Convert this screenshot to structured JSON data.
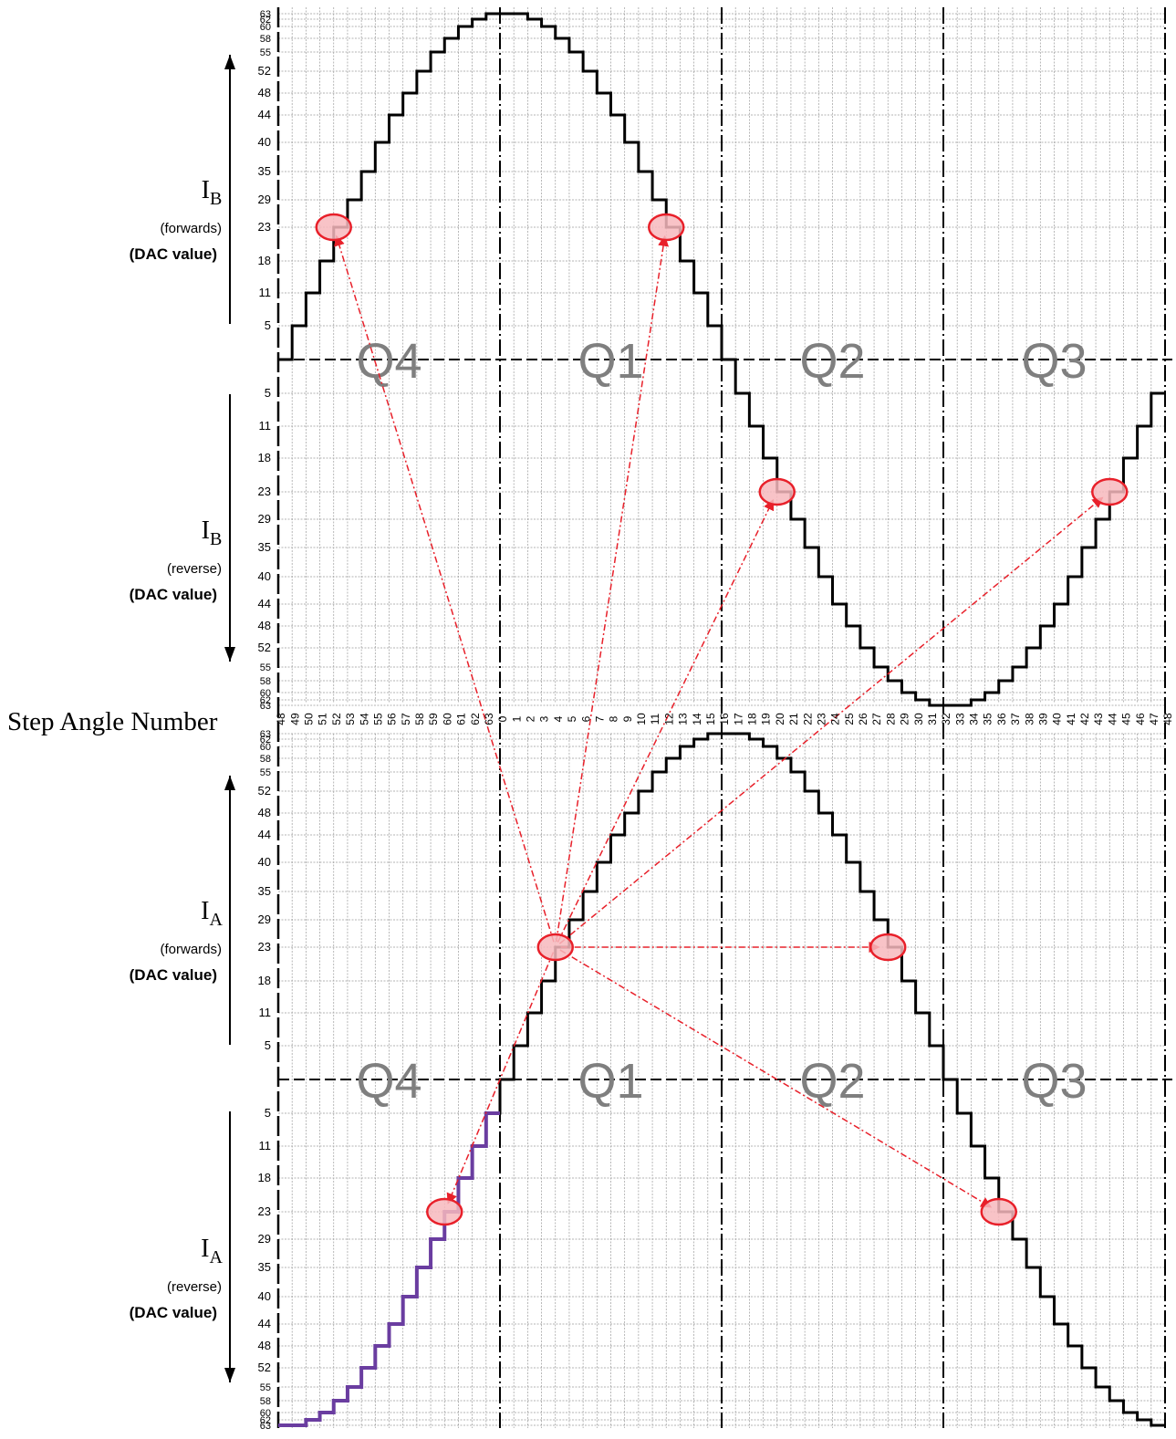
{
  "colors": {
    "background": "#ffffff",
    "grid_minor": "#9a9a9a",
    "grid_major": "#000000",
    "waveform": "#000000",
    "highlight_trace": "#6a3da0",
    "quadrant_label": "#7f7f7f",
    "marker_stroke": "#e8202a",
    "marker_fill": "#f7b9bd",
    "arrow": "#e8202a"
  },
  "dac_levels": [
    "5",
    "11",
    "18",
    "23",
    "29",
    "35",
    "40",
    "44",
    "48",
    "52",
    "55",
    "58",
    "60",
    "62",
    "63"
  ],
  "step_axis_label": "Step Angle Number",
  "step_labels": [
    "48",
    "49",
    "50",
    "51",
    "52",
    "53",
    "54",
    "55",
    "56",
    "57",
    "58",
    "59",
    "60",
    "61",
    "62",
    "63",
    "0",
    "1",
    "2",
    "3",
    "4",
    "5",
    "6",
    "7",
    "8",
    "9",
    "10",
    "11",
    "12",
    "13",
    "14",
    "15",
    "16",
    "17",
    "18",
    "19",
    "20",
    "21",
    "22",
    "23",
    "24",
    "25",
    "26",
    "27",
    "28",
    "29",
    "30",
    "31",
    "32",
    "33",
    "34",
    "35",
    "36",
    "37",
    "38",
    "39",
    "40",
    "41",
    "42",
    "43",
    "44",
    "45",
    "46",
    "47",
    "48"
  ],
  "quadrants": [
    "Q4",
    "Q1",
    "Q2",
    "Q3"
  ],
  "panels": [
    {
      "current": "I",
      "subscript": "B",
      "direction": "(forwards)",
      "unit": "(DAC value)"
    },
    {
      "current": "I",
      "subscript": "B",
      "direction": "(reverse)",
      "unit": "(DAC value)"
    },
    {
      "current": "I",
      "subscript": "A",
      "direction": "(forwards)",
      "unit": "(DAC value)"
    },
    {
      "current": "I",
      "subscript": "A",
      "direction": "(reverse)",
      "unit": "(DAC value)"
    }
  ],
  "chart_data": {
    "type": "line",
    "x_unit": "step angle number (column index 0-64 ↔ labels 48..63,0..47,48)",
    "y_unit": "signed DAC level index (-15..15)",
    "series": [
      {
        "name": "IB",
        "values": [
          0,
          1,
          2,
          3,
          4,
          5,
          6,
          7,
          8,
          9,
          10,
          11,
          12,
          13,
          14,
          15,
          15,
          15,
          14,
          13,
          12,
          11,
          10,
          9,
          8,
          7,
          6,
          5,
          4,
          3,
          2,
          1,
          0,
          -1,
          -2,
          -3,
          -4,
          -5,
          -6,
          -7,
          -8,
          -9,
          -10,
          -11,
          -12,
          -13,
          -14,
          -15,
          -15,
          -15,
          -14,
          -13,
          -12,
          -11,
          -10,
          -9,
          -8,
          -7,
          -6,
          -5,
          -4,
          -3,
          -2,
          -1,
          0
        ]
      },
      {
        "name": "IA",
        "values": [
          -15,
          -15,
          -14,
          -13,
          -12,
          -11,
          -10,
          -9,
          -8,
          -7,
          -6,
          -5,
          -4,
          -3,
          -2,
          -1,
          0,
          1,
          2,
          3,
          4,
          5,
          6,
          7,
          8,
          9,
          10,
          11,
          12,
          13,
          14,
          15,
          15,
          15,
          14,
          13,
          12,
          11,
          10,
          9,
          8,
          7,
          6,
          5,
          4,
          3,
          2,
          1,
          0,
          -1,
          -2,
          -3,
          -4,
          -5,
          -6,
          -7,
          -8,
          -9,
          -10,
          -11,
          -12,
          -13,
          -14,
          -15,
          -15
        ]
      }
    ],
    "highlight": {
      "series": "IA",
      "from_step": 0,
      "to_step": 16
    },
    "markers": [
      {
        "series": "IB",
        "step": 52,
        "level": 4
      },
      {
        "series": "IB",
        "step": 12,
        "level": 4
      },
      {
        "series": "IB",
        "step": 20,
        "level": -4
      },
      {
        "series": "IB",
        "step": 44,
        "level": -4
      },
      {
        "series": "IA",
        "step": 4,
        "level": 4
      },
      {
        "series": "IA",
        "step": 28,
        "level": 4
      },
      {
        "series": "IA",
        "step": 60,
        "level": -4
      },
      {
        "series": "IA",
        "step": 36,
        "level": -4
      }
    ],
    "arrows": [
      [
        4,
        0
      ],
      [
        4,
        1
      ],
      [
        4,
        2
      ],
      [
        4,
        3
      ],
      [
        4,
        5
      ],
      [
        4,
        6
      ],
      [
        4,
        7
      ]
    ]
  }
}
